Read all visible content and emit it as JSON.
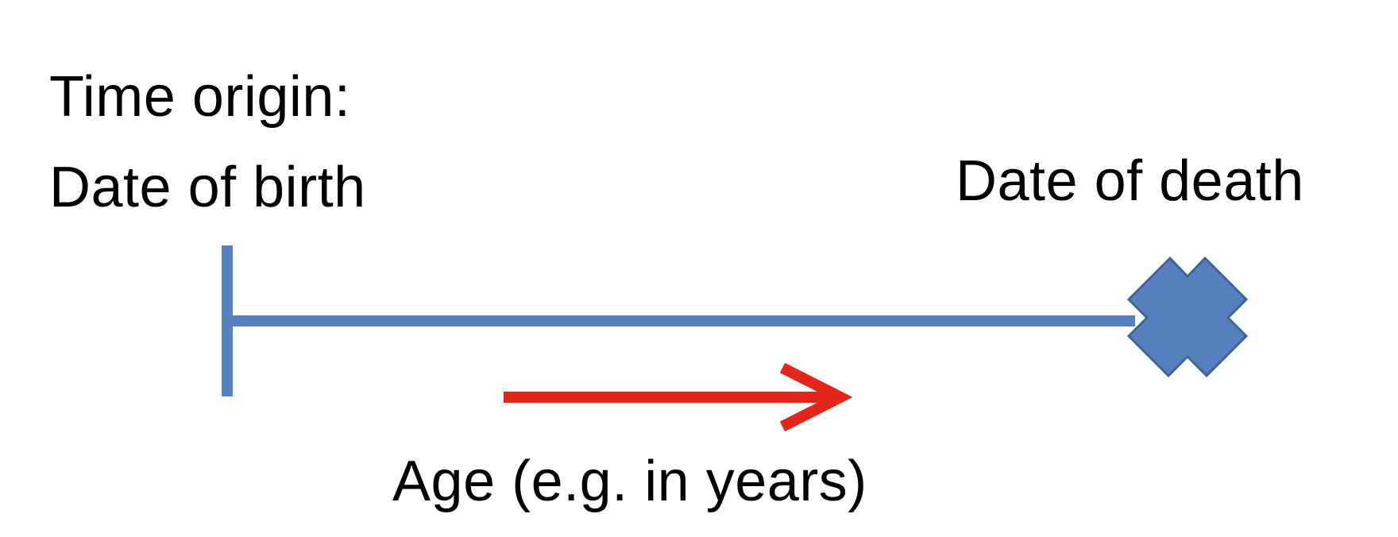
{
  "origin": {
    "title": "Time origin:",
    "subtitle": "Date of birth"
  },
  "end_event": {
    "label": "Date of death",
    "marker_icon": "x-cross-icon",
    "color": "#5580bd",
    "outline_color": "#3f6497"
  },
  "timeline": {
    "color": "#5580bd"
  },
  "time_axis": {
    "label": "Age (e.g. in years)",
    "arrow_icon": "arrow-right-icon",
    "color": "#e3251a"
  }
}
